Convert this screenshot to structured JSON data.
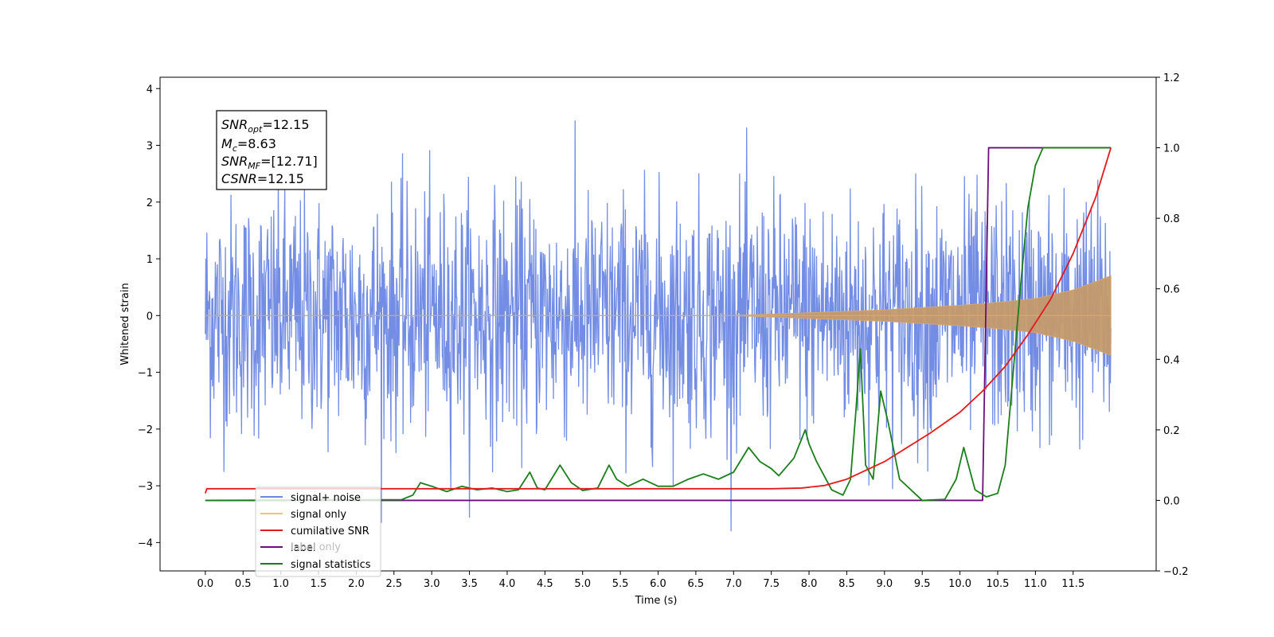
{
  "chart_data": {
    "type": "line",
    "title": "",
    "xlabel": "Time (s)",
    "ylabel": "Whitened strain",
    "xlim": [
      -0.6,
      12.6
    ],
    "ylim": [
      -4.5,
      4.2
    ],
    "y2lim": [
      -0.2,
      1.2
    ],
    "xticks": [
      "0.0",
      "0.5",
      "1.0",
      "1.5",
      "2.0",
      "2.5",
      "3.0",
      "3.5",
      "4.0",
      "4.5",
      "5.0",
      "5.5",
      "6.0",
      "6.5",
      "7.0",
      "7.5",
      "8.0",
      "8.5",
      "9.0",
      "9.5",
      "10.0",
      "10.5",
      "11.0",
      "11.5"
    ],
    "yticks": [
      "4",
      "3",
      "2",
      "1",
      "0",
      "−1",
      "−2",
      "−3",
      "−4"
    ],
    "y2ticks": [
      "1.2",
      "1.0",
      "0.8",
      "0.6",
      "0.4",
      "0.2",
      "0.0",
      "−0.2"
    ],
    "legend_position": "lower-left",
    "grid": false,
    "annotation": {
      "snr_opt_label": "SNR",
      "snr_opt_sub": "opt",
      "snr_opt_value": "=12.15",
      "mc_label": "M",
      "mc_sub": "c",
      "mc_value": "=8.63",
      "snr_mf_label": "SNR",
      "snr_mf_sub": "MF",
      "snr_mf_value": "=[12.71]",
      "csnr_label": "CSNR",
      "csnr_value": "=12.15"
    },
    "series": [
      {
        "name": "signal+ noise",
        "color": "#6b87e3",
        "axis": "left",
        "description": "whitened noise band roughly ±2.2 with spikes to about ±3.7 over 0–12 s",
        "t_range": [
          0.0,
          12.0
        ],
        "typical_amplitude": 2.2,
        "peak_amplitude": 3.8
      },
      {
        "name": "signal only",
        "color": "#ffb347",
        "axis": "left",
        "description": "chirp near zero growing to amplitude about 0.7 at 12 s",
        "envelope_t": [
          0.0,
          7.0,
          8.0,
          9.0,
          10.0,
          10.5,
          11.0,
          11.5,
          12.0
        ],
        "envelope_amp": [
          0.0,
          0.0,
          0.05,
          0.1,
          0.18,
          0.23,
          0.3,
          0.45,
          0.7
        ]
      },
      {
        "name": "cumilative SNR",
        "color": "#e31a1c",
        "axis": "right",
        "t": [
          0.0,
          0.02,
          7.5,
          7.9,
          8.2,
          8.5,
          8.8,
          9.0,
          9.3,
          9.6,
          10.0,
          10.3,
          10.6,
          10.9,
          11.2,
          11.5,
          11.8,
          12.0
        ],
        "values": [
          0.02,
          0.033,
          0.033,
          0.035,
          0.042,
          0.06,
          0.09,
          0.11,
          0.15,
          0.19,
          0.25,
          0.31,
          0.38,
          0.47,
          0.57,
          0.7,
          0.86,
          1.0
        ]
      },
      {
        "name": "label",
        "color": "#6a0f7a",
        "axis": "right",
        "t": [
          0.0,
          10.3,
          10.38,
          12.0
        ],
        "values": [
          0.0,
          0.0,
          1.0,
          1.0
        ]
      },
      {
        "name": "label only",
        "color": "#6a0f7a",
        "axis": "right",
        "t": [],
        "values": []
      },
      {
        "name": "signal statistics",
        "color": "#1a7f1a",
        "axis": "right",
        "t": [
          0.0,
          2.6,
          2.75,
          2.85,
          3.0,
          3.2,
          3.4,
          3.6,
          3.8,
          4.0,
          4.15,
          4.3,
          4.4,
          4.5,
          4.7,
          4.85,
          5.0,
          5.2,
          5.35,
          5.45,
          5.6,
          5.8,
          6.0,
          6.2,
          6.4,
          6.6,
          6.8,
          7.0,
          7.2,
          7.35,
          7.5,
          7.6,
          7.8,
          7.95,
          8.0,
          8.1,
          8.3,
          8.45,
          8.55,
          8.62,
          8.68,
          8.75,
          8.85,
          8.95,
          9.05,
          9.2,
          9.5,
          9.8,
          9.95,
          10.05,
          10.2,
          10.35,
          10.5,
          10.6,
          10.7,
          10.8,
          10.9,
          11.0,
          11.1,
          11.2,
          12.0
        ],
        "values": [
          0.0,
          0.002,
          0.015,
          0.05,
          0.04,
          0.025,
          0.04,
          0.03,
          0.035,
          0.025,
          0.03,
          0.08,
          0.035,
          0.03,
          0.1,
          0.05,
          0.028,
          0.035,
          0.1,
          0.06,
          0.04,
          0.06,
          0.04,
          0.04,
          0.06,
          0.075,
          0.06,
          0.08,
          0.15,
          0.11,
          0.09,
          0.07,
          0.12,
          0.2,
          0.16,
          0.11,
          0.03,
          0.015,
          0.06,
          0.25,
          0.43,
          0.1,
          0.06,
          0.31,
          0.22,
          0.06,
          0.0,
          0.003,
          0.06,
          0.15,
          0.03,
          0.01,
          0.02,
          0.1,
          0.35,
          0.6,
          0.83,
          0.95,
          1.0,
          1.0,
          1.0
        ]
      }
    ]
  }
}
